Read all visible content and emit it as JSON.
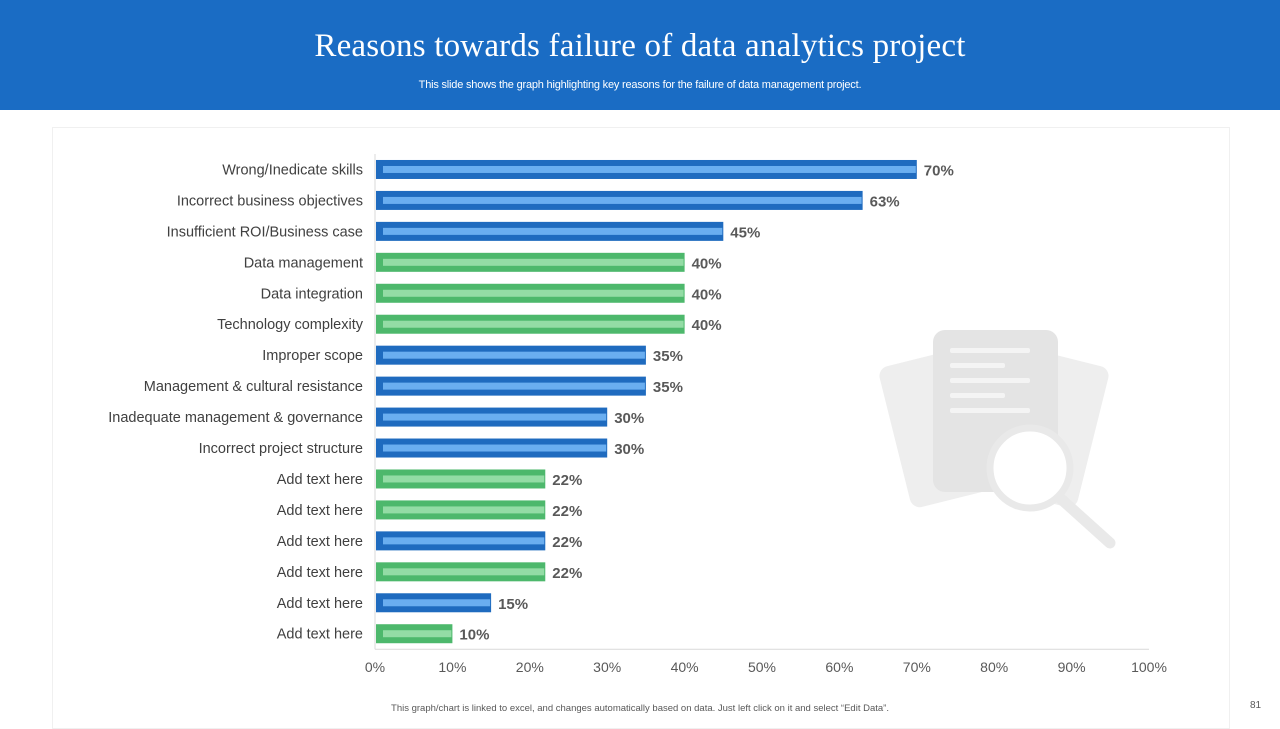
{
  "slide": {
    "title": "Reasons towards failure of data analytics project",
    "subtitle": "This slide shows the graph highlighting key reasons for the failure of data management project.",
    "footnote": "This graph/chart is linked to excel, and changes automatically based on data. Just left click on it and select “Edit Data”.",
    "page_number": "81"
  },
  "colors": {
    "header": "#1a6cc4",
    "blue_bar": "#1f6bbf",
    "blue_bar_inner": "#6aaef0",
    "green_bar": "#4db86c",
    "green_bar_inner": "#93dca5",
    "label_text": "#404040",
    "value_text": "#595959",
    "decorative_icon": "#eeeeee"
  },
  "decoration": {
    "icon": "document-magnifier-icon"
  },
  "chart_data": {
    "type": "bar",
    "orientation": "horizontal",
    "categories": [
      "Wrong/Inedicate skills",
      "Incorrect business objectives",
      "Insufficient ROI/Business case",
      "Data management ",
      "Data integration",
      "Technology complexity",
      "Improper scope",
      "Management & cultural resistance",
      "Inadequate management & governance",
      "Incorrect project structure",
      "Add text here",
      "Add text here",
      "Add text here",
      "Add text here",
      "Add text here",
      "Add text here"
    ],
    "values": [
      70,
      63,
      45,
      40,
      40,
      40,
      35,
      35,
      30,
      30,
      22,
      22,
      22,
      22,
      15,
      10
    ],
    "value_labels": [
      "70%",
      "63%",
      "45%",
      "40%",
      "40%",
      "40%",
      "35%",
      "35%",
      "30%",
      "30%",
      "22%",
      "22%",
      "22%",
      "22%",
      "15%",
      "10%"
    ],
    "bar_colors": [
      "blue",
      "blue",
      "blue",
      "green",
      "green",
      "green",
      "blue",
      "blue",
      "blue",
      "blue",
      "green",
      "green",
      "blue",
      "green",
      "blue",
      "green"
    ],
    "xlim": [
      0,
      100
    ],
    "x_ticks": [
      "0%",
      "10%",
      "20%",
      "30%",
      "40%",
      "50%",
      "60%",
      "70%",
      "80%",
      "90%",
      "100%"
    ],
    "grid": false,
    "legend": "none"
  }
}
